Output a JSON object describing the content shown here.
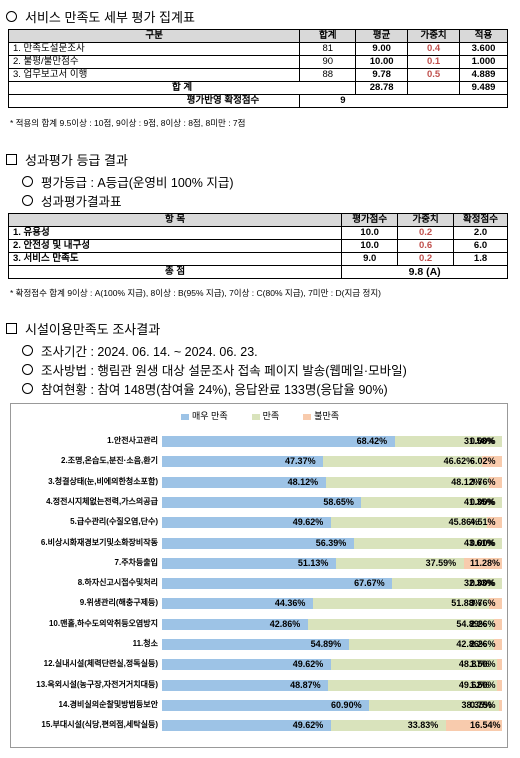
{
  "section1": {
    "title": "서비스 만족도 세부 평가 집계표",
    "headers": [
      "구분",
      "합계",
      "평균",
      "가중치",
      "적용"
    ],
    "rows": [
      {
        "name": "1. 만족도설문조사",
        "sum": "81",
        "avg": "9.00",
        "weight": "0.4",
        "applied": "3.600"
      },
      {
        "name": "2. 불평/불만점수",
        "sum": "90",
        "avg": "10.00",
        "weight": "0.1",
        "applied": "1.000"
      },
      {
        "name": "3. 업무보고서 이행",
        "sum": "88",
        "avg": "9.78",
        "weight": "0.5",
        "applied": "4.889"
      }
    ],
    "total_label": "합    계",
    "total_avg": "28.78",
    "total_applied": "9.489",
    "final_label": "평가반영 확정점수",
    "final_value": "9",
    "note": "* 적용의 합계 9.5이상 : 10점, 9이상 : 9점, 8이상 : 8점, 8미만 : 7점"
  },
  "section2": {
    "title": "성과평가 등급 결과",
    "line1": "평가등급 : A등급(운영비 100% 지급)",
    "line2": "성과평가결과표",
    "headers": [
      "항    목",
      "평가점수",
      "가중치",
      "확정점수"
    ],
    "rows": [
      {
        "name": "1. 유용성",
        "score": "10.0",
        "weight": "0.2",
        "final": "2.0"
      },
      {
        "name": "2. 안전성 및 내구성",
        "score": "10.0",
        "weight": "0.6",
        "final": "6.0"
      },
      {
        "name": "3. 서비스 만족도",
        "score": "9.0",
        "weight": "0.2",
        "final": "1.8"
      }
    ],
    "total_label": "총    점",
    "total_value": "9.8 (A)",
    "note": "* 확정점수 합계 9이상 : A(100% 지급), 8이상 : B(95% 지급), 7이상 : C(80% 지급), 7미만 : D(지급 정지)"
  },
  "section3": {
    "title": "시설이용만족도 조사결과",
    "line1": "조사기간 : 2024. 06. 14. ~ 2024. 06. 23.",
    "line2": "조사방법 : 행림관 원생 대상 설문조사 접속 페이지 발송(웹메일·모바일)",
    "line3": "참여현황 : 참여 148명(참여율 24%), 응답완료 133명(응답율 90%)"
  },
  "chart_data": {
    "type": "bar",
    "orientation": "horizontal",
    "stacked": true,
    "percent": true,
    "legend_position": "top",
    "categories": [
      "1.안전사고관리",
      "2.조명,온습도,분진·소음,환기",
      "3.청결상태(눈,비에의한청소포함)",
      "4.정전시지체없는전력,가스의공급",
      "5.급수관리(수질오염,단수)",
      "6.비상시화재경보기및소화장비작동",
      "7.주차등출입",
      "8.하자신고시접수및처리",
      "9.위생관리(해충구제등)",
      "10.맨홀,하수도의악취등오염방지",
      "11.청소",
      "12.실내시설(체력단련실,정독실등)",
      "13.옥외시설(농구장,자전거거치대등)",
      "14.경비실의순찰및방범등보안",
      "15.부대시설(식당,편의점,세탁실등)"
    ],
    "series": [
      {
        "name": "매우 만족",
        "color": "#9dc3e6",
        "values": [
          68.42,
          47.37,
          48.12,
          58.65,
          49.62,
          56.39,
          51.13,
          67.67,
          44.36,
          42.86,
          54.89,
          49.62,
          48.87,
          60.9,
          49.62
        ]
      },
      {
        "name": "만족",
        "color": "#d9e3bc",
        "values": [
          31.58,
          46.62,
          48.12,
          41.35,
          45.86,
          43.61,
          37.59,
          32.33,
          51.88,
          54.89,
          42.86,
          48.87,
          49.62,
          38.35,
          33.83
        ]
      },
      {
        "name": "불만족",
        "color": "#f8cbad",
        "values": [
          0.0,
          6.02,
          3.76,
          0.0,
          4.51,
          0.0,
          11.28,
          0.0,
          3.76,
          2.26,
          2.26,
          1.5,
          1.5,
          0.75,
          16.54
        ]
      }
    ],
    "value_labels": [
      [
        "68.42%",
        "31.58%",
        "0.00%"
      ],
      [
        "47.37%",
        "46.62%",
        "6.02%"
      ],
      [
        "48.12%",
        "48.12%",
        "3.76%"
      ],
      [
        "58.65%",
        "41.35%",
        "0.00%"
      ],
      [
        "49.62%",
        "45.86%",
        "4.51%"
      ],
      [
        "56.39%",
        "43.61%",
        "0.00%"
      ],
      [
        "51.13%",
        "37.59%",
        "11.28%"
      ],
      [
        "67.67%",
        "32.33%",
        "0.00%"
      ],
      [
        "44.36%",
        "51.88%",
        "3.76%"
      ],
      [
        "42.86%",
        "54.89%",
        "2.26%"
      ],
      [
        "54.89%",
        "42.86%",
        "2.26%"
      ],
      [
        "49.62%",
        "48.87%",
        "1.50%"
      ],
      [
        "48.87%",
        "49.62%",
        "1.50%"
      ],
      [
        "60.90%",
        "38.35%",
        "0.75%"
      ],
      [
        "49.62%",
        "33.83%",
        "16.54%"
      ]
    ]
  }
}
